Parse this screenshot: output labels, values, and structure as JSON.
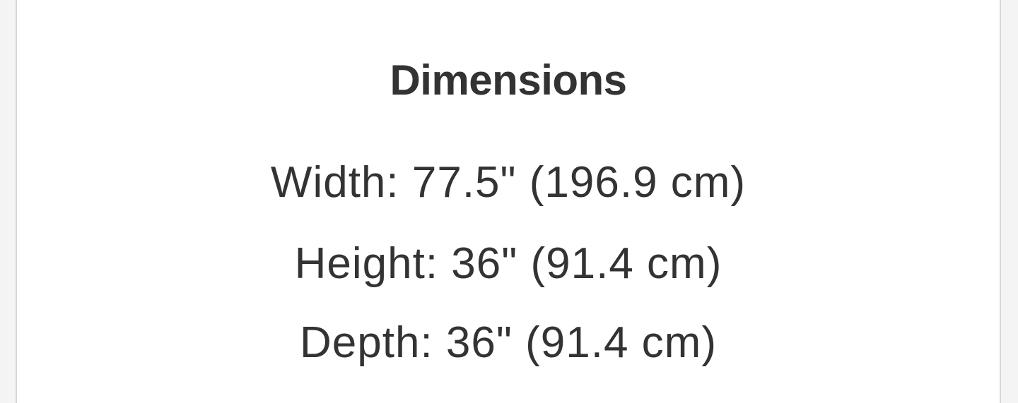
{
  "section": {
    "title": "Dimensions",
    "lines": [
      "Width: 77.5\" (196.9 cm)",
      "Height: 36\" (91.4 cm)",
      "Depth: 36\" (91.4 cm)"
    ]
  },
  "colors": {
    "text": "#333333",
    "background": "#ffffff",
    "border": "#d6d6d6"
  }
}
